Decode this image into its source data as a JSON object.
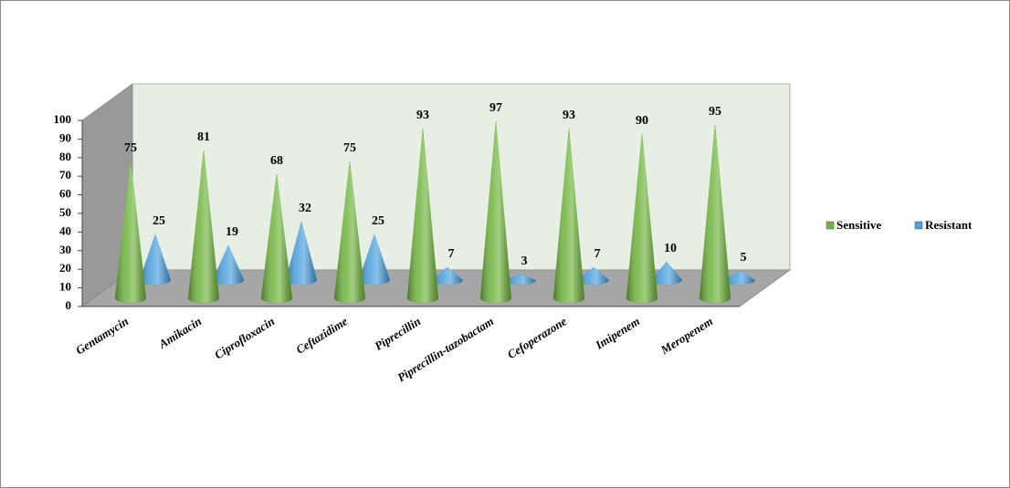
{
  "chart_data": {
    "type": "cone",
    "categories": [
      "Gentamycin",
      "Amikacin",
      "Ciprofloxacin",
      "Ceftazidime",
      "Piprecillin",
      "Piprecillin-tazobactam",
      "Cefoperazone",
      "Imipenem",
      "Meropenem"
    ],
    "series": [
      {
        "name": "Sensitive",
        "color": "#6fb33c",
        "values": [
          75,
          81,
          68,
          75,
          93,
          97,
          93,
          90,
          95
        ]
      },
      {
        "name": "Resistant",
        "color": "#4a9fdc",
        "values": [
          25,
          19,
          32,
          25,
          7,
          3,
          7,
          10,
          5
        ]
      }
    ],
    "ylim": [
      0,
      100
    ],
    "yticks": [
      0,
      10,
      20,
      30,
      40,
      50,
      60,
      70,
      80,
      90,
      100
    ],
    "grid": false,
    "legend": "right"
  }
}
